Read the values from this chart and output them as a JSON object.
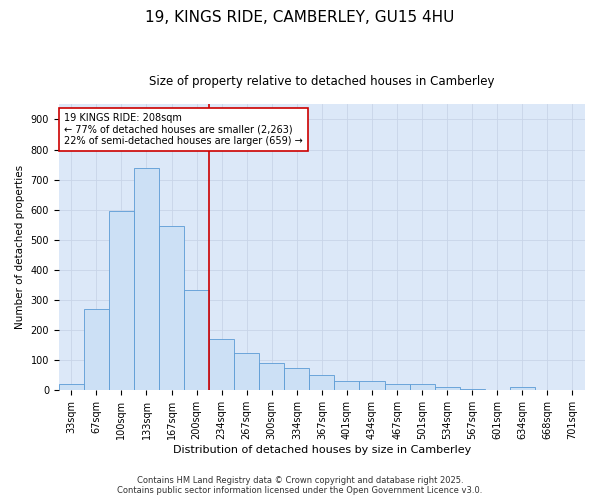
{
  "title": "19, KINGS RIDE, CAMBERLEY, GU15 4HU",
  "subtitle": "Size of property relative to detached houses in Camberley",
  "xlabel": "Distribution of detached houses by size in Camberley",
  "ylabel": "Number of detached properties",
  "annotation_title": "19 KINGS RIDE: 208sqm",
  "annotation_line1": "← 77% of detached houses are smaller (2,263)",
  "annotation_line2": "22% of semi-detached houses are larger (659) →",
  "footer1": "Contains HM Land Registry data © Crown copyright and database right 2025.",
  "footer2": "Contains public sector information licensed under the Open Government Licence v3.0.",
  "bar_labels": [
    "33sqm",
    "67sqm",
    "100sqm",
    "133sqm",
    "167sqm",
    "200sqm",
    "234sqm",
    "267sqm",
    "300sqm",
    "334sqm",
    "367sqm",
    "401sqm",
    "434sqm",
    "467sqm",
    "501sqm",
    "534sqm",
    "567sqm",
    "601sqm",
    "634sqm",
    "668sqm",
    "701sqm"
  ],
  "bar_values": [
    20,
    270,
    595,
    740,
    545,
    335,
    170,
    125,
    90,
    75,
    50,
    30,
    30,
    20,
    20,
    10,
    5,
    0,
    10,
    0,
    0
  ],
  "bar_color": "#cce0f5",
  "bar_edge_color": "#5b9bd5",
  "vline_x": 5.5,
  "vline_color": "#cc0000",
  "annotation_box_color": "#cc0000",
  "grid_color": "#c8d4e8",
  "bg_color": "#dce8f8",
  "ylim": [
    0,
    950
  ],
  "yticks": [
    0,
    100,
    200,
    300,
    400,
    500,
    600,
    700,
    800,
    900
  ],
  "title_fontsize": 11,
  "subtitle_fontsize": 8.5,
  "ylabel_fontsize": 7.5,
  "xlabel_fontsize": 8,
  "tick_fontsize": 7,
  "footer_fontsize": 6,
  "annot_fontsize": 7
}
